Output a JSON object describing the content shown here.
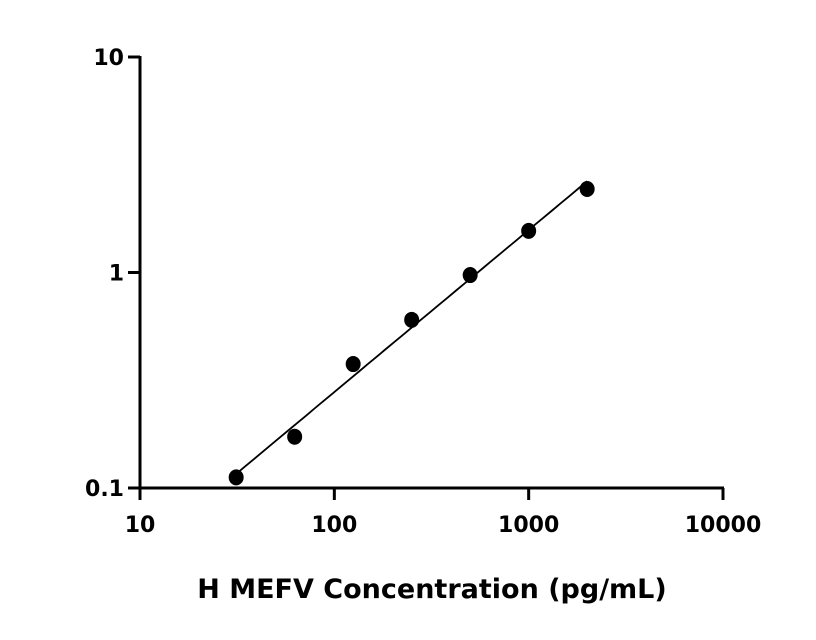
{
  "chart_data": {
    "type": "scatter",
    "title": "",
    "xlabel": "H MEFV Concentration (pg/mL)",
    "ylabel": "",
    "xscale": "log",
    "yscale": "log",
    "xlim": [
      10,
      10000
    ],
    "ylim": [
      0.1,
      10
    ],
    "x_ticks": [
      "10",
      "100",
      "1000",
      "10000"
    ],
    "y_ticks": [
      "0.1",
      "1",
      "10"
    ],
    "grid": false,
    "series": [
      {
        "x": [
          31.25,
          62.5,
          125,
          250,
          500,
          1000,
          2000
        ],
        "y": [
          0.112,
          0.173,
          0.376,
          0.603,
          0.973,
          1.56,
          2.44
        ],
        "marker": "circle",
        "color": "#000000",
        "fit_line": true
      }
    ]
  }
}
